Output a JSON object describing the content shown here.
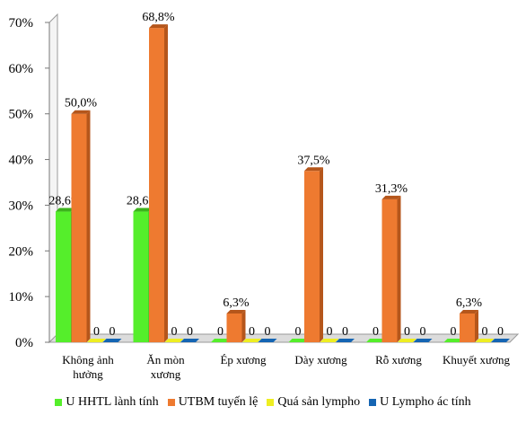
{
  "chart_data": {
    "type": "bar",
    "categories": [
      "Không ảnh\nhưởng",
      "Ăn mòn\nxương",
      "Ép xương",
      "Dày xương",
      "Rỗ xương",
      "Khuyết xương"
    ],
    "series": [
      {
        "name": "U HHTL lành tính",
        "color": "#55ee2b",
        "side": "#3cb31c",
        "values": [
          28.6,
          28.6,
          0,
          0,
          0,
          0
        ],
        "labels": [
          "28,6%",
          "28,6%",
          "0",
          "0",
          "0",
          "0"
        ]
      },
      {
        "name": "UTBM tuyến lệ",
        "color": "#ee7a30",
        "side": "#b5561b",
        "values": [
          50.0,
          68.8,
          6.3,
          37.5,
          31.3,
          6.3
        ],
        "labels": [
          "50,0%",
          "68,8%",
          "6,3%",
          "37,5%",
          "31,3%",
          "6,3%"
        ]
      },
      {
        "name": "Quá sản lympho",
        "color": "#eeee22",
        "side": "#b3b312",
        "values": [
          0,
          0,
          0,
          0,
          0,
          0
        ],
        "labels": [
          "0",
          "0",
          "0",
          "0",
          "0",
          "0"
        ]
      },
      {
        "name": "U Lympho ác tính",
        "color": "#1565b3",
        "side": "#0d4580",
        "values": [
          0,
          0,
          0,
          0,
          0,
          0
        ],
        "labels": [
          "0",
          "0",
          "0",
          "0",
          "0",
          "0"
        ]
      }
    ],
    "yticks": [
      "0%",
      "10%",
      "20%",
      "30%",
      "40%",
      "50%",
      "60%",
      "70%"
    ],
    "ylim": [
      0,
      70
    ],
    "grid": false,
    "legend": "bottom"
  }
}
